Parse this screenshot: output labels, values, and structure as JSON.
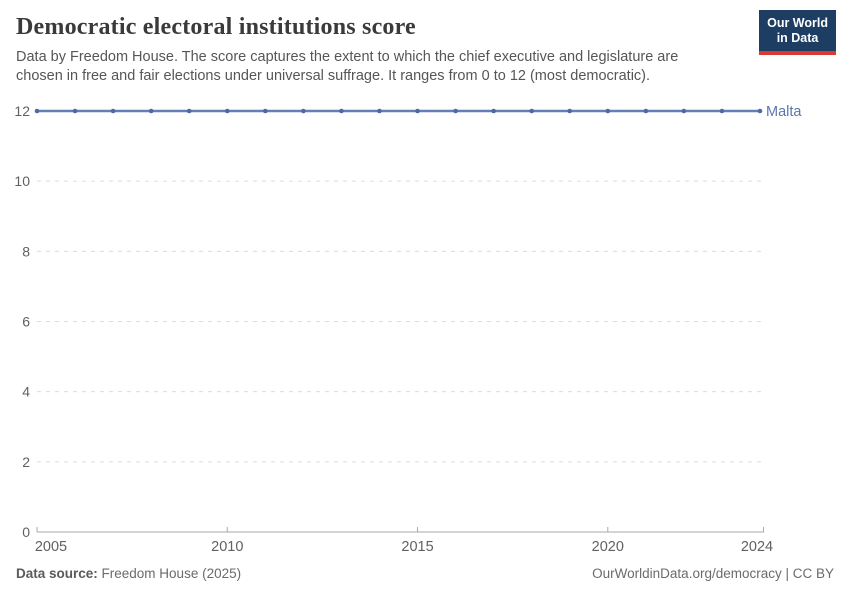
{
  "header": {
    "title": "Democratic electoral institutions score",
    "subtitle": "Data by Freedom House. The score captures the extent to which the chief executive and legislature are\nchosen in free and fair elections under universal suffrage. It ranges from 0 to 12 (most democratic).",
    "logo_line1": "Our World",
    "logo_line2": "in Data",
    "logo_bg": "#1d3d63",
    "logo_accent": "#d93a32"
  },
  "chart_data": {
    "type": "line",
    "title": "Democratic electoral institutions score",
    "x": [
      2005,
      2006,
      2007,
      2008,
      2009,
      2010,
      2011,
      2012,
      2013,
      2014,
      2015,
      2016,
      2017,
      2018,
      2019,
      2020,
      2021,
      2022,
      2023,
      2024
    ],
    "series": [
      {
        "name": "Malta",
        "values": [
          12,
          12,
          12,
          12,
          12,
          12,
          12,
          12,
          12,
          12,
          12,
          12,
          12,
          12,
          12,
          12,
          12,
          12,
          12,
          12
        ],
        "color": "#6380b5",
        "marker_color": "#4e6aa4",
        "label_color": "#5878ab"
      }
    ],
    "xticks": [
      2005,
      2010,
      2015,
      2020,
      2024
    ],
    "yticks": [
      0,
      2,
      4,
      6,
      8,
      10,
      12
    ],
    "xlim": [
      2005,
      2024
    ],
    "ylim": [
      0,
      12
    ],
    "grid": "horizontal-dashed",
    "legend_position": "end-of-line",
    "style": {
      "grid_color": "#dcdcdc",
      "axis_color": "#a9a9a9",
      "tick_label_color": "#616161"
    }
  },
  "footer": {
    "source_label": "Data source:",
    "source_value": " Freedom House (2025)",
    "link_text": "OurWorldinData.org/democracy | CC BY"
  }
}
